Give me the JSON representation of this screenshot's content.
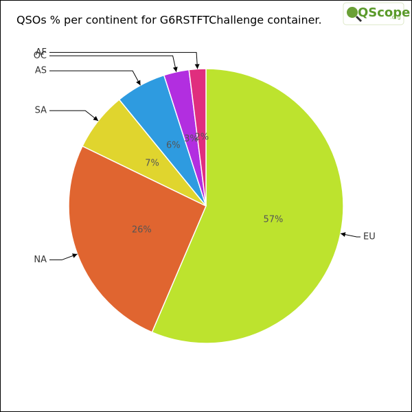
{
  "chart_data": {
    "type": "pie",
    "title": "QSOs % per continent for G6RSTFTChallenge container.",
    "categories": [
      "EU",
      "NA",
      "SA",
      "AS",
      "OC",
      "AF"
    ],
    "values": [
      57,
      26,
      7,
      6,
      3,
      2
    ],
    "value_labels": [
      "57%",
      "26%",
      "7%",
      "6%",
      "3%",
      "2%"
    ],
    "colors": [
      "#bde32e",
      "#e06530",
      "#e0d52e",
      "#2e9be0",
      "#b22ee0",
      "#e02e7e"
    ]
  },
  "logo": {
    "text": "QScope",
    "suffix": ".org"
  }
}
